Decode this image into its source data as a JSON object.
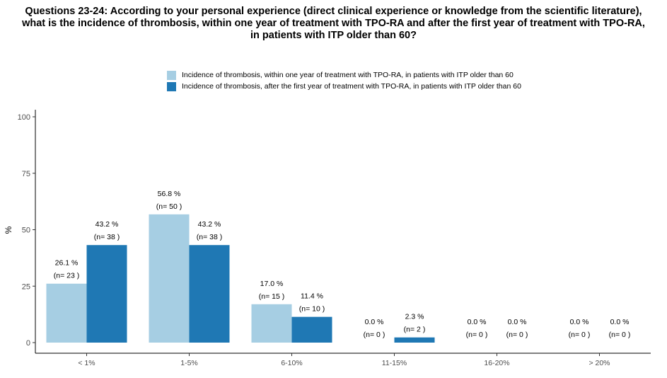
{
  "chart_data": {
    "type": "bar",
    "title": [
      "Questions 23-24: According to your personal experience (direct clinical experience or knowledge from the scientific literature),",
      "what is the incidence of thrombosis, within one year of treatment with TPO-RA and after the first year of treatment with TPO-RA,",
      "in patients with ITP older than 60?"
    ],
    "xlabel": "",
    "ylabel": "%",
    "ylim": [
      0,
      100
    ],
    "yticks": [
      0,
      25,
      50,
      75,
      100
    ],
    "categories": [
      "< 1%",
      "1-5%",
      "6-10%",
      "11-15%",
      "16-20%",
      "> 20%"
    ],
    "legend_position": "top",
    "grid": false,
    "series": [
      {
        "name": "Incidence of thrombosis, within one year of treatment with TPO-RA, in patients with ITP older than 60",
        "color": "#a6cee3",
        "values": [
          26.1,
          56.8,
          17.0,
          0.0,
          0.0,
          0.0
        ],
        "labels": [
          "26.1 %",
          "56.8 %",
          "17.0 %",
          "0.0 %",
          "0.0 %",
          "0.0 %"
        ],
        "n_labels": [
          "(n= 23 )",
          "(n= 50 )",
          "(n= 15 )",
          "(n= 0 )",
          "(n= 0 )",
          "(n= 0 )"
        ]
      },
      {
        "name": "Incidence of thrombosis, after the first year of treatment with TPO-RA, in patients with ITP older than 60",
        "color": "#1f78b4",
        "values": [
          43.2,
          43.2,
          11.4,
          2.3,
          0.0,
          0.0
        ],
        "labels": [
          "43.2 %",
          "43.2 %",
          "11.4 %",
          "2.3 %",
          "0.0 %",
          "0.0 %"
        ],
        "n_labels": [
          "(n= 38 )",
          "(n= 38 )",
          "(n= 10 )",
          "(n= 2 )",
          "(n= 0 )",
          "(n= 0 )"
        ]
      }
    ]
  }
}
